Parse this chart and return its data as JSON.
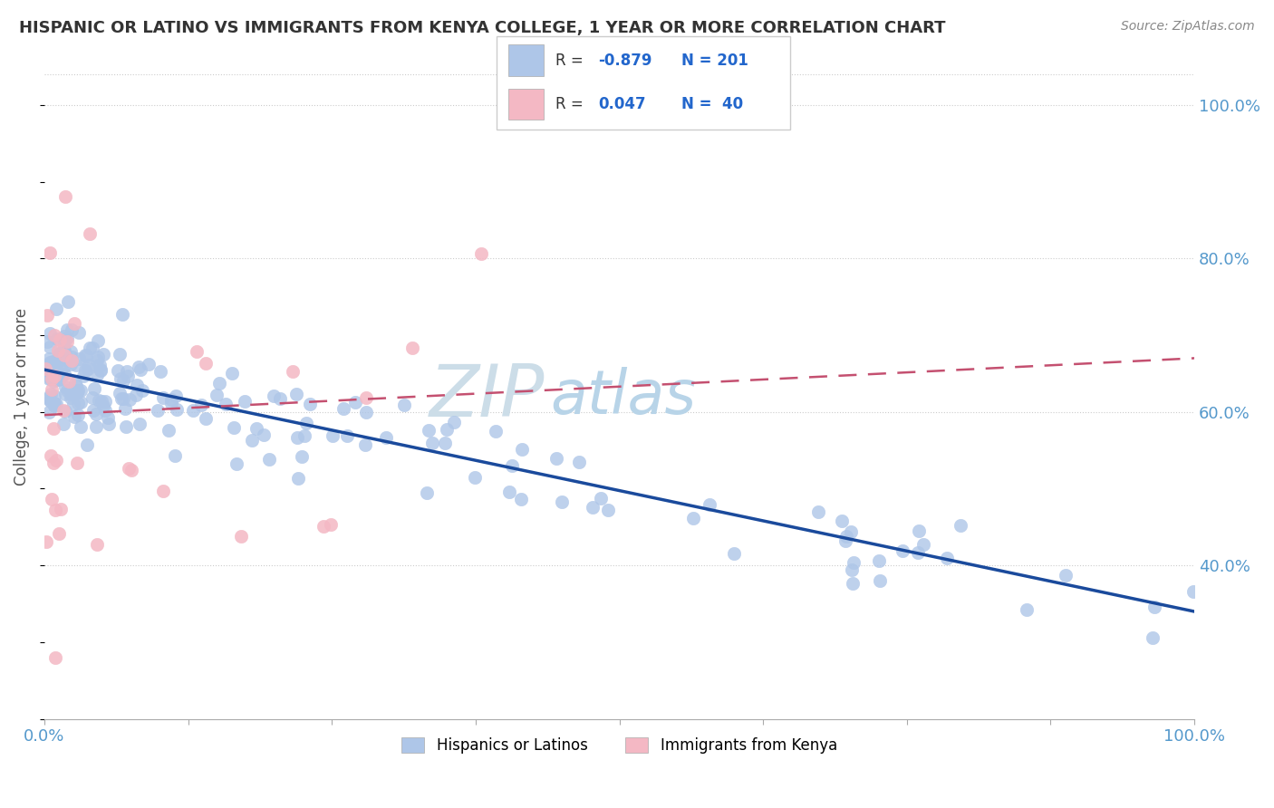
{
  "title": "HISPANIC OR LATINO VS IMMIGRANTS FROM KENYA COLLEGE, 1 YEAR OR MORE CORRELATION CHART",
  "source": "Source: ZipAtlas.com",
  "xlabel": "",
  "ylabel": "College, 1 year or more",
  "xmin": 0.0,
  "xmax": 1.0,
  "ymin": 0.2,
  "ymax": 1.04,
  "blue_R": -0.879,
  "blue_N": 201,
  "pink_R": 0.047,
  "pink_N": 40,
  "blue_color": "#aec6e8",
  "blue_line_color": "#1a4a9c",
  "pink_color": "#f4b8c4",
  "pink_line_color": "#c45070",
  "watermark": "ZIP",
  "watermark2": "atlas",
  "watermark_color": "#cde0f0",
  "legend_label_blue": "Hispanics or Latinos",
  "legend_label_pink": "Immigrants from Kenya",
  "right_ytick_labels": [
    "40.0%",
    "60.0%",
    "80.0%",
    "100.0%"
  ],
  "right_ytick_values": [
    0.4,
    0.6,
    0.8,
    1.0
  ],
  "blue_line_x0": 0.0,
  "blue_line_x1": 1.0,
  "blue_line_y0": 0.655,
  "blue_line_y1": 0.34,
  "pink_line_x0": 0.0,
  "pink_line_x1": 1.0,
  "pink_line_y0": 0.596,
  "pink_line_y1": 0.67
}
